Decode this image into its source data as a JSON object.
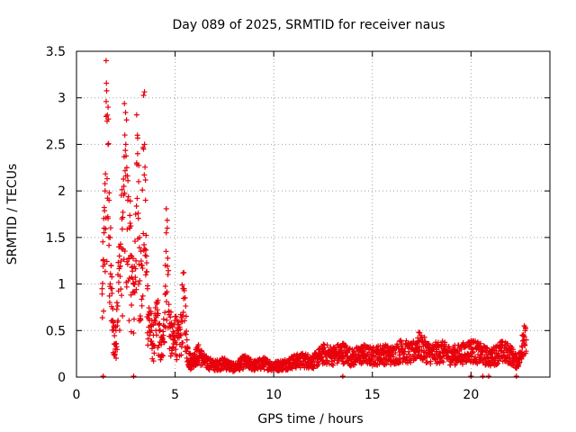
{
  "chart_data": {
    "type": "scatter",
    "title": "Day 089 of 2025, SRMTID for receiver naus",
    "xlabel": "GPS time / hours",
    "ylabel": "SRMTID / TECUs",
    "xlim": [
      0,
      24
    ],
    "ylim": [
      0,
      3.5
    ],
    "x_ticks": [
      0,
      5,
      10,
      15,
      20
    ],
    "x_tick_labels": [
      "0",
      "5",
      "10",
      "15",
      "20"
    ],
    "y_ticks": [
      0,
      0.5,
      1,
      1.5,
      2,
      2.5,
      3,
      3.5
    ],
    "y_tick_labels": [
      "0",
      "0.5",
      "1",
      "1.5",
      "2",
      "2.5",
      "3",
      "3.5"
    ],
    "grid": true,
    "marker": "plus",
    "series": [
      {
        "name": "SRMTID",
        "color": "#e8000b",
        "profile_description_hours": "envelope of the dense cloud of measurements",
        "points": [
          [
            1.3,
            0.95
          ],
          [
            1.35,
            1.25
          ],
          [
            1.4,
            1.6
          ],
          [
            1.45,
            2.0
          ],
          [
            1.5,
            3.4
          ],
          [
            1.5,
            2.8
          ],
          [
            1.55,
            2.75
          ],
          [
            1.6,
            2.9
          ],
          [
            1.6,
            2.5
          ],
          [
            1.65,
            1.9
          ],
          [
            1.7,
            1.5
          ],
          [
            1.75,
            1.2
          ],
          [
            1.8,
            0.9
          ],
          [
            1.85,
            0.6
          ],
          [
            1.9,
            0.55
          ],
          [
            1.95,
            0.35
          ],
          [
            2.0,
            0.5
          ],
          [
            2.05,
            0.8
          ],
          [
            2.1,
            1.1
          ],
          [
            2.2,
            1.4
          ],
          [
            2.3,
            1.7
          ],
          [
            2.4,
            2.05
          ],
          [
            2.45,
            2.6
          ],
          [
            2.5,
            2.5
          ],
          [
            2.55,
            2.25
          ],
          [
            2.6,
            1.9
          ],
          [
            2.7,
            1.6
          ],
          [
            2.8,
            1.3
          ],
          [
            2.9,
            1.0
          ],
          [
            3.0,
            1.75
          ],
          [
            3.05,
            2.3
          ],
          [
            3.1,
            2.4
          ],
          [
            3.15,
            2.1
          ],
          [
            3.2,
            1.5
          ],
          [
            3.3,
            1.2
          ],
          [
            3.4,
            2.45
          ],
          [
            3.45,
            2.5
          ],
          [
            3.5,
            1.9
          ],
          [
            3.55,
            1.3
          ],
          [
            3.6,
            0.95
          ],
          [
            3.7,
            0.7
          ],
          [
            3.8,
            0.55
          ],
          [
            3.9,
            0.45
          ],
          [
            4.0,
            0.6
          ],
          [
            4.1,
            0.8
          ],
          [
            4.2,
            0.5
          ],
          [
            4.3,
            0.35
          ],
          [
            4.4,
            0.45
          ],
          [
            4.5,
            1.2
          ],
          [
            4.55,
            1.55
          ],
          [
            4.6,
            1.6
          ],
          [
            4.7,
            0.7
          ],
          [
            4.8,
            0.55
          ],
          [
            4.9,
            0.4
          ],
          [
            5.0,
            0.65
          ],
          [
            5.1,
            0.5
          ],
          [
            5.2,
            0.45
          ],
          [
            5.3,
            0.6
          ],
          [
            5.4,
            0.95
          ],
          [
            5.5,
            0.85
          ],
          [
            5.6,
            0.4
          ],
          [
            5.7,
            0.25
          ],
          [
            5.8,
            0.2
          ],
          [
            6.0,
            0.25
          ],
          [
            6.2,
            0.3
          ],
          [
            6.5,
            0.2
          ],
          [
            7.0,
            0.15
          ],
          [
            7.5,
            0.18
          ],
          [
            8.0,
            0.12
          ],
          [
            8.5,
            0.2
          ],
          [
            9.0,
            0.15
          ],
          [
            9.5,
            0.18
          ],
          [
            10.0,
            0.14
          ],
          [
            10.5,
            0.16
          ],
          [
            11.0,
            0.2
          ],
          [
            11.5,
            0.22
          ],
          [
            12.0,
            0.2
          ],
          [
            12.5,
            0.3
          ],
          [
            13.0,
            0.28
          ],
          [
            13.5,
            0.32
          ],
          [
            14.0,
            0.25
          ],
          [
            14.5,
            0.3
          ],
          [
            15.0,
            0.27
          ],
          [
            15.5,
            0.3
          ],
          [
            16.0,
            0.28
          ],
          [
            16.5,
            0.35
          ],
          [
            17.0,
            0.3
          ],
          [
            17.3,
            0.42
          ],
          [
            17.5,
            0.38
          ],
          [
            18.0,
            0.3
          ],
          [
            18.5,
            0.33
          ],
          [
            19.0,
            0.28
          ],
          [
            19.5,
            0.3
          ],
          [
            20.0,
            0.35
          ],
          [
            20.5,
            0.3
          ],
          [
            21.0,
            0.25
          ],
          [
            21.5,
            0.33
          ],
          [
            22.0,
            0.3
          ],
          [
            22.3,
            0.2
          ],
          [
            22.5,
            0.25
          ],
          [
            22.6,
            0.45
          ],
          [
            22.7,
            0.55
          ],
          [
            22.8,
            0.4
          ]
        ],
        "baseline_points": [
          [
            1.35,
            0.0
          ],
          [
            2.9,
            0.0
          ],
          [
            13.5,
            0.0
          ],
          [
            20.0,
            0.0
          ],
          [
            20.6,
            0.0
          ],
          [
            20.9,
            0.0
          ],
          [
            22.3,
            0.0
          ]
        ]
      }
    ]
  }
}
